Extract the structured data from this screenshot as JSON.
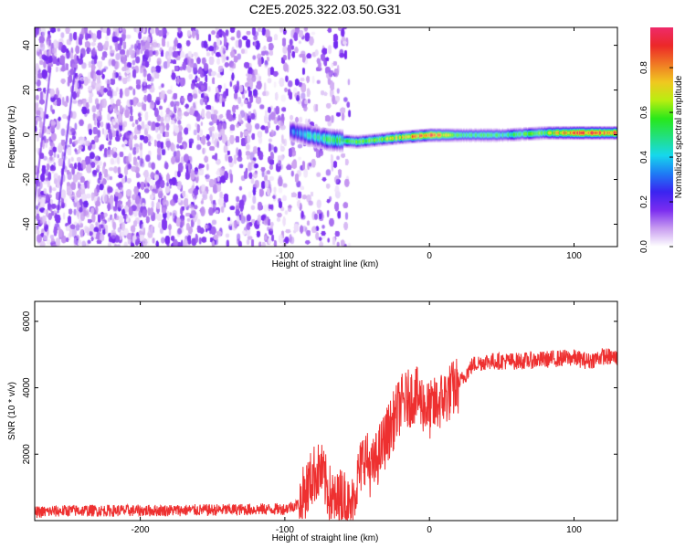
{
  "title": "C2E5.2025.322.03.50.G31",
  "top_panel": {
    "xlabel": "Height of straight line (km)",
    "ylabel": "Frequency (Hz)",
    "colorbar_label": "Normalized spectral amplitude",
    "x_ticks": [
      "-200",
      "-100",
      "0",
      "100"
    ],
    "y_ticks": [
      "40",
      "20",
      "0",
      "-20",
      "-40"
    ],
    "colorbar_ticks": [
      "0.0",
      "0.2",
      "0.4",
      "0.6",
      "0.8"
    ]
  },
  "bottom_panel": {
    "xlabel": "Height of straight line (km)",
    "ylabel": "SNR (10 * v/v)",
    "x_ticks": [
      "-200",
      "-100",
      "0",
      "100"
    ],
    "y_ticks": [
      "2000",
      "4000",
      "6000"
    ]
  },
  "chart_data": [
    {
      "type": "heatmap",
      "xlim": [
        -273,
        130
      ],
      "ylim": [
        -50,
        48
      ],
      "zlim": [
        0,
        0.98
      ],
      "colormap": [
        "#ffffff",
        "#c89cf0",
        "#7a2cf0",
        "#3a24f0",
        "#1e7cf5",
        "#16d8ec",
        "#22e080",
        "#28e81a",
        "#b8ee10",
        "#f0c820",
        "#f07824",
        "#ec2828",
        "#ee2a6a"
      ],
      "noise_region_x": [
        -273,
        -55
      ],
      "signal_ridge": [
        {
          "x": -97,
          "y": 2,
          "z": 0.3
        },
        {
          "x": -85,
          "y": 0,
          "z": 0.4
        },
        {
          "x": -70,
          "y": -2,
          "z": 0.5
        },
        {
          "x": -50,
          "y": -3,
          "z": 0.55
        },
        {
          "x": -35,
          "y": -2,
          "z": 0.6
        },
        {
          "x": -20,
          "y": -1,
          "z": 0.7
        },
        {
          "x": 0,
          "y": 0,
          "z": 0.9
        },
        {
          "x": 20,
          "y": 0,
          "z": 0.5
        },
        {
          "x": 50,
          "y": 0,
          "z": 0.5
        },
        {
          "x": 80,
          "y": 1,
          "z": 0.6
        },
        {
          "x": 100,
          "y": 1,
          "z": 0.9
        },
        {
          "x": 130,
          "y": 1,
          "z": 0.85
        }
      ]
    },
    {
      "type": "line",
      "xlim": [
        -273,
        130
      ],
      "ylim": [
        0,
        6600
      ],
      "series": [
        {
          "color": "#ee3030",
          "x": [
            -273,
            -250,
            -200,
            -150,
            -100,
            -90,
            -80,
            -75,
            -70,
            -65,
            -60,
            -55,
            -50,
            -45,
            -40,
            -30,
            -20,
            -10,
            0,
            10,
            20,
            30,
            40,
            60,
            80,
            95,
            100,
            110,
            120,
            130
          ],
          "y": [
            250,
            300,
            300,
            320,
            350,
            500,
            1400,
            1500,
            900,
            500,
            800,
            300,
            1200,
            2000,
            1500,
            2500,
            3500,
            3800,
            3300,
            3700,
            4100,
            4700,
            4800,
            4800,
            4850,
            4900,
            4900,
            4800,
            4950,
            4900
          ]
        }
      ]
    }
  ]
}
